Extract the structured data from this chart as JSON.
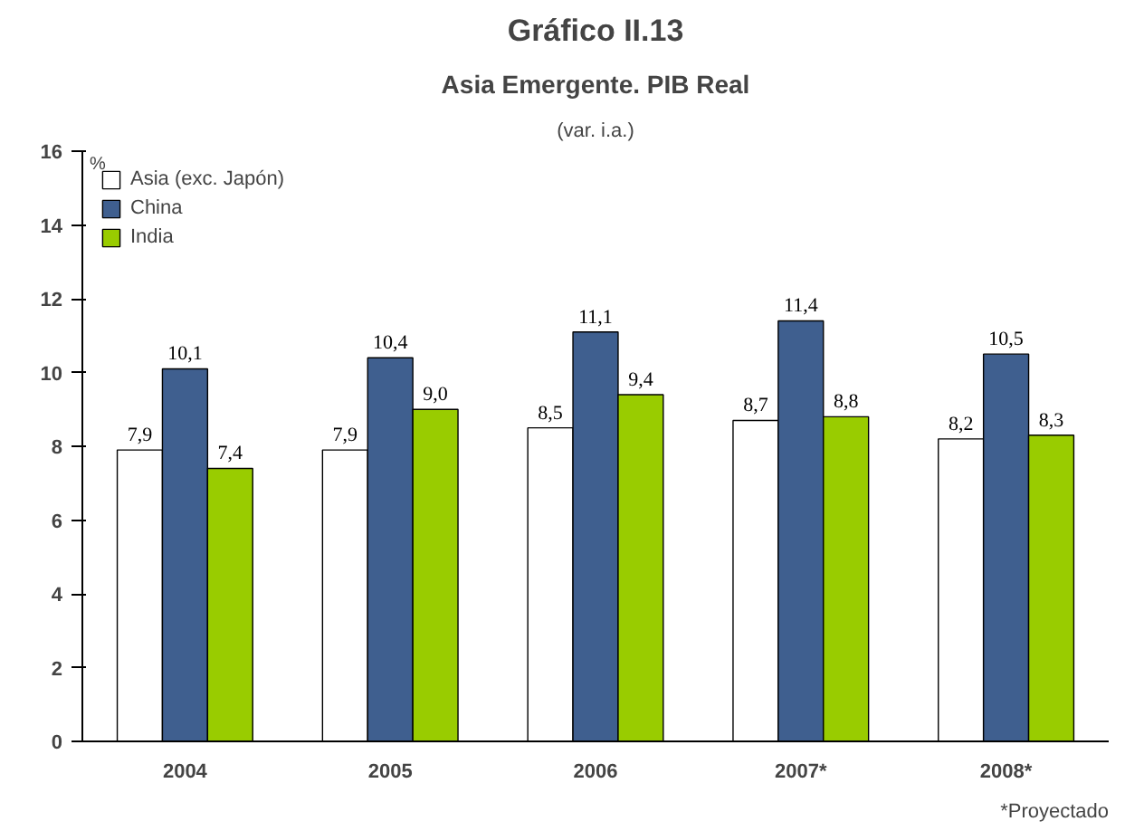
{
  "chart_data": {
    "type": "bar",
    "title": "Gráfico II.13",
    "subtitle": "Asia Emergente. PIB Real",
    "ylabel": "%",
    "annotations": [
      "(var. i.a.)",
      "*Proyectado"
    ],
    "categories": [
      "2004",
      "2005",
      "2006",
      "2007*",
      "2008*"
    ],
    "series": [
      {
        "name": "Asia (exc. Japón)",
        "color": "#ffffff",
        "values": [
          7.9,
          7.9,
          8.5,
          8.7,
          8.2
        ],
        "value_labels": [
          "7,9",
          "7,9",
          "8,5",
          "8,7",
          "8,2"
        ]
      },
      {
        "name": "China",
        "color": "#3f5f8f",
        "values": [
          10.1,
          10.4,
          11.1,
          11.4,
          10.5
        ],
        "value_labels": [
          "10,1",
          "10,4",
          "11,1",
          "11,4",
          "10,5"
        ]
      },
      {
        "name": "India",
        "color": "#99cc00",
        "values": [
          7.4,
          9.0,
          9.4,
          8.8,
          8.3
        ],
        "value_labels": [
          "7,4",
          "9,0",
          "9,4",
          "8,8",
          "8,3"
        ]
      }
    ],
    "ylim": [
      0,
      16
    ],
    "yticks": [
      0,
      2,
      4,
      6,
      8,
      10,
      12,
      14,
      16
    ],
    "grid": false,
    "legend": "top left"
  }
}
